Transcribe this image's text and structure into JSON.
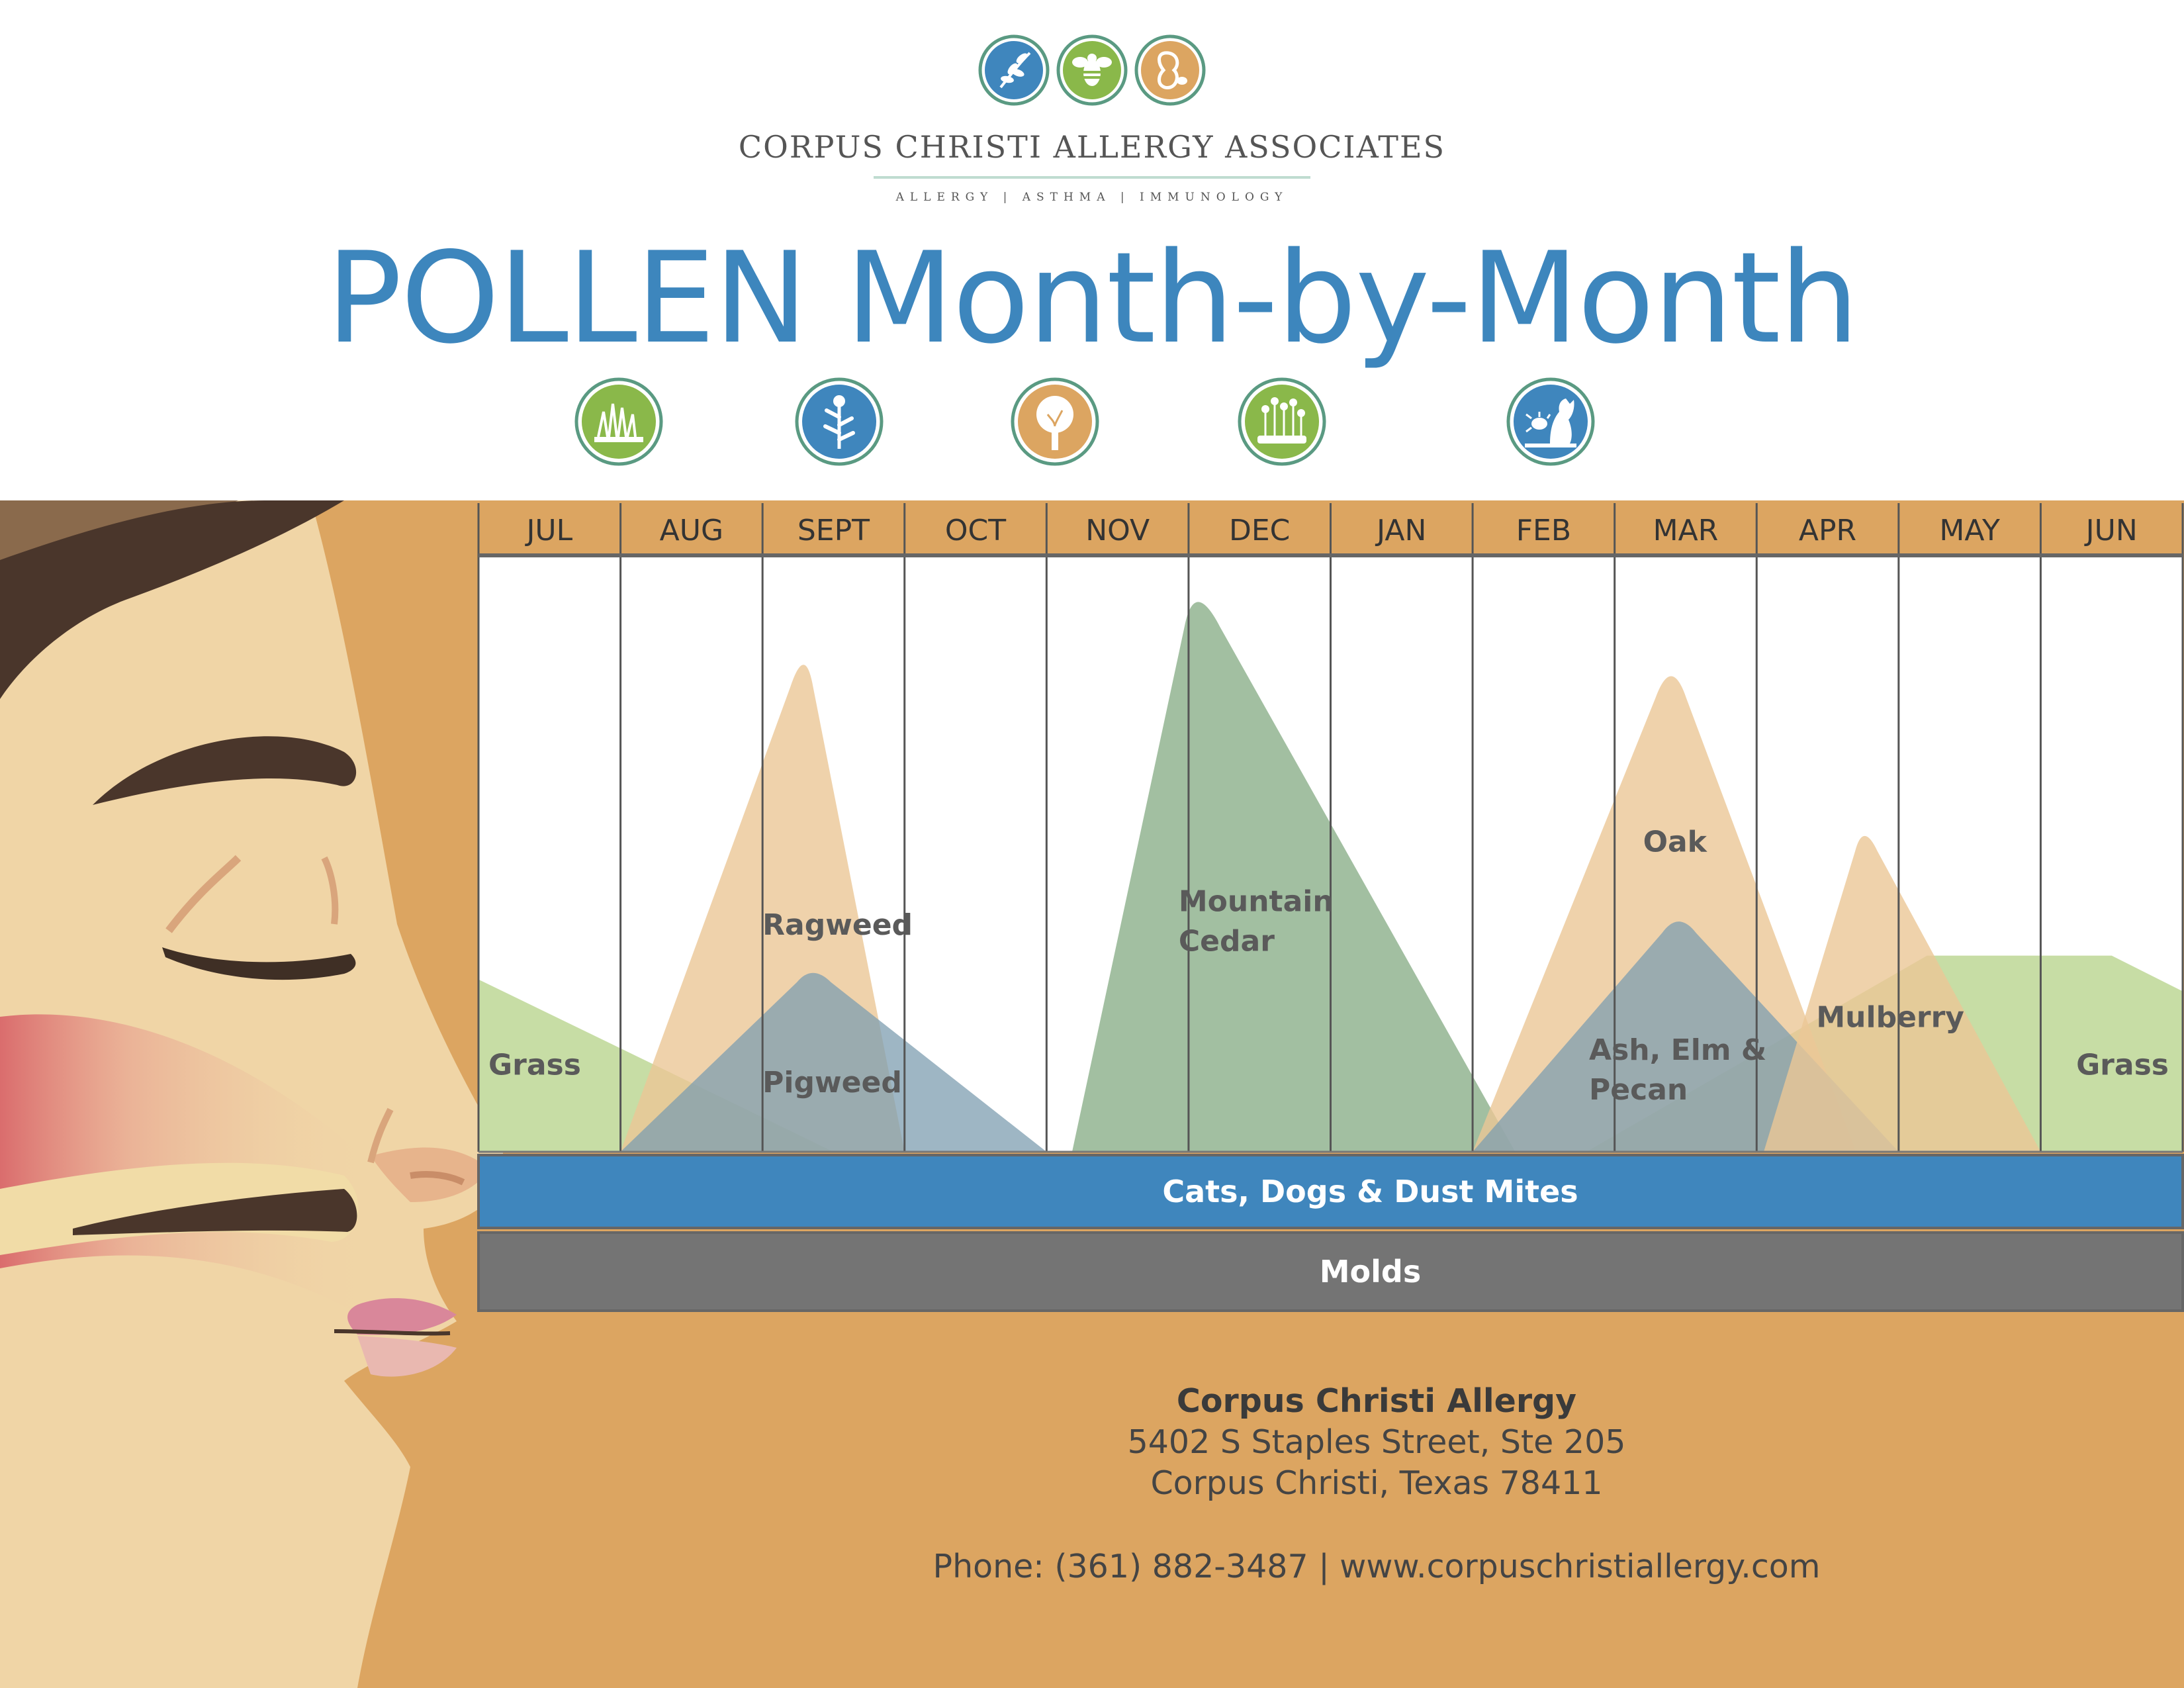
{
  "header": {
    "org_name": "CORPUS CHRISTI ALLERGY ASSOCIATES",
    "tagline": "ALLERGY | ASTHMA | IMMUNOLOGY",
    "title": "POLLEN Month-by-Month",
    "logo_icons": [
      "leaf-icon",
      "bee-icon",
      "peanut-icon"
    ],
    "category_icons": [
      "grass-icon",
      "weed-icon",
      "tree-icon",
      "flowers-icon",
      "pet-dust-mite-icon"
    ]
  },
  "colors": {
    "title": "#3d86bd",
    "band": "#dca561",
    "grass": "#b9d48f",
    "weed_tan": "#ebc796",
    "pigweed_blue": "#7d9eb0",
    "cedar_green": "#88ad86",
    "cats_dogs_bar": "#3f86bd",
    "molds_bar": "#747474"
  },
  "chart_data": {
    "type": "area",
    "title": "",
    "xlabel": "",
    "ylabel": "",
    "ylim": [
      0,
      100
    ],
    "months": [
      "JUL",
      "AUG",
      "SEPT",
      "OCT",
      "NOV",
      "DEC",
      "JAN",
      "FEB",
      "MAR",
      "APR",
      "MAY",
      "JUN"
    ],
    "series": [
      {
        "name": "Grass",
        "color": "#b9d48f",
        "opacity": 0.8,
        "points": [
          [
            0,
            29
          ],
          [
            2.5,
            0
          ]
        ]
      },
      {
        "name": "Grass",
        "color": "#b9d48f",
        "opacity": 0.8,
        "points": [
          [
            7.8,
            0
          ],
          [
            10.2,
            33
          ],
          [
            11.5,
            33
          ],
          [
            12,
            27
          ]
        ]
      },
      {
        "name": "Ragweed",
        "color": "#ebc796",
        "opacity": 0.8,
        "points": [
          [
            1,
            0
          ],
          [
            2.3,
            85
          ],
          [
            3,
            0
          ]
        ]
      },
      {
        "name": "Pigweed",
        "color": "#7d9eb0",
        "opacity": 0.75,
        "points": [
          [
            1,
            0
          ],
          [
            2.35,
            31
          ],
          [
            4,
            0
          ]
        ]
      },
      {
        "name": "Mountain Cedar",
        "color": "#88ad86",
        "opacity": 0.78,
        "points": [
          [
            4.18,
            0
          ],
          [
            5.04,
            96
          ],
          [
            7.3,
            0
          ]
        ]
      },
      {
        "name": "Oak",
        "color": "#ebc796",
        "opacity": 0.8,
        "points": [
          [
            7,
            0
          ],
          [
            8.4,
            83
          ],
          [
            9.7,
            0
          ]
        ]
      },
      {
        "name": "Ash, Elm & Pecan",
        "color": "#7d9eb0",
        "opacity": 0.75,
        "points": [
          [
            7,
            0
          ],
          [
            8.45,
            40
          ],
          [
            10,
            0
          ]
        ]
      },
      {
        "name": "Mulberry",
        "color": "#ebc796",
        "opacity": 0.8,
        "points": [
          [
            9.05,
            0
          ],
          [
            9.75,
            55
          ],
          [
            11,
            0
          ]
        ]
      }
    ],
    "series_labels": [
      {
        "text": "Grass",
        "x": 0.07,
        "y": 13
      },
      {
        "text": "Ragweed",
        "x": 2.0,
        "y": 36.5
      },
      {
        "text": "Pigweed",
        "x": 2.0,
        "y": 10
      },
      {
        "text": "Mountain Cedar",
        "x": 4.93,
        "y": 40.5
      },
      {
        "text": "Oak",
        "x": 8.2,
        "y": 50.5
      },
      {
        "text": "Ash, Elm & Pecan",
        "x": 7.82,
        "y": 15.5
      },
      {
        "text": "Mulberry",
        "x": 9.42,
        "y": 21
      },
      {
        "text": "Grass",
        "x": 11.25,
        "y": 13
      }
    ],
    "year_round_bars": [
      {
        "name": "Cats, Dogs & Dust Mites",
        "color": "#3f86bd"
      },
      {
        "name": "Molds",
        "color": "#747474"
      }
    ]
  },
  "footer": {
    "name": "Corpus Christi Allergy",
    "address1": "5402 S Staples Street, Ste 205",
    "address2": "Corpus Christi, Texas 78411",
    "contact": "Phone: (361) 882-3487 | www.corpuschristiallergy.com"
  }
}
